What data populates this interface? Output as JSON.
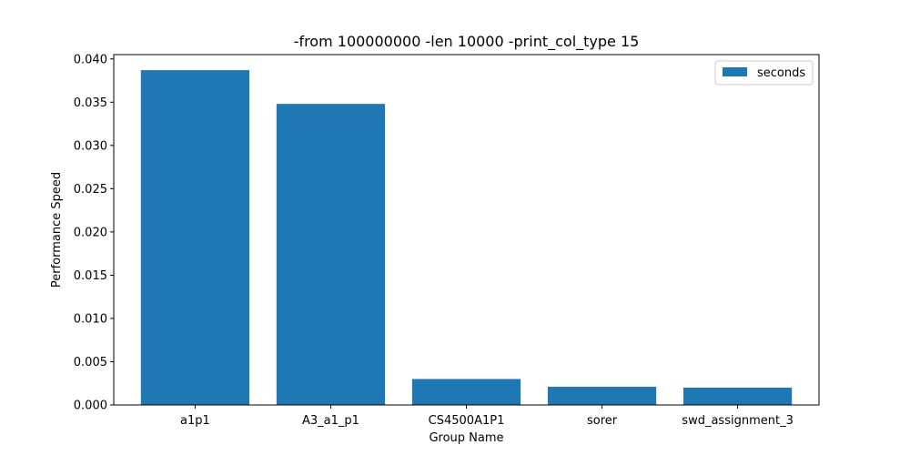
{
  "chart_data": {
    "type": "bar",
    "title": "-from 100000000 -len 10000 -print_col_type 15",
    "xlabel": "Group Name",
    "ylabel": "Performance Speed",
    "categories": [
      "a1p1",
      "A3_a1_p1",
      "CS4500A1P1",
      "sorer",
      "swd_assignment_3"
    ],
    "series": [
      {
        "name": "seconds",
        "values": [
          0.0387,
          0.0348,
          0.003,
          0.0021,
          0.002
        ],
        "color": "#1f77b4"
      }
    ],
    "ylim": [
      0,
      0.0405
    ],
    "yticks": [
      0.0,
      0.005,
      0.01,
      0.015,
      0.02,
      0.025,
      0.03,
      0.035,
      0.04
    ],
    "ytick_labels": [
      "0.000",
      "0.005",
      "0.010",
      "0.015",
      "0.020",
      "0.025",
      "0.030",
      "0.035",
      "0.040"
    ],
    "grid": false,
    "legend_position": "top-right"
  }
}
